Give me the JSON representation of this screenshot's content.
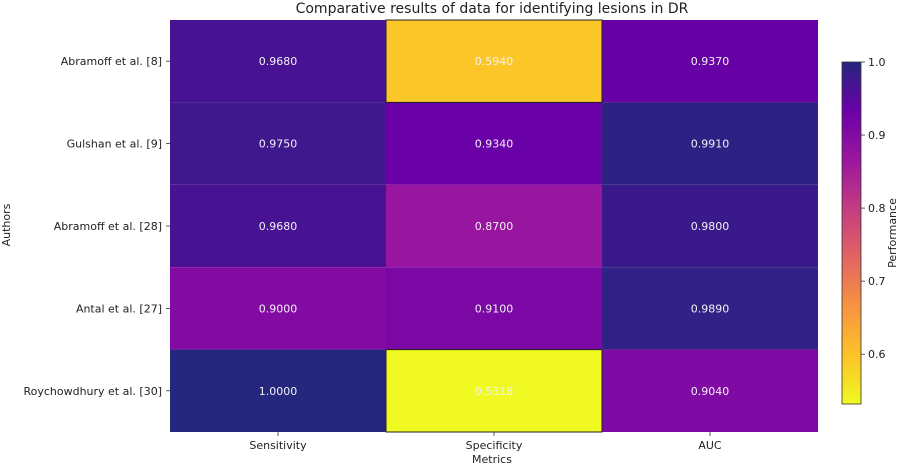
{
  "chart_data": {
    "type": "heatmap",
    "title": "Comparative results of data for identifying lesions in DR",
    "xlabel": "Metrics",
    "ylabel": "Authors",
    "x_categories": [
      "Sensitivity",
      "Specificity",
      "AUC"
    ],
    "y_categories": [
      "Abramoff et al. [8]",
      "Gulshan et al. [9]",
      "Abramoff et al. [28]",
      "Antal et al. [27]",
      "Roychowdhury et al. [30]"
    ],
    "values": [
      [
        0.968,
        0.594,
        0.937
      ],
      [
        0.975,
        0.934,
        0.991
      ],
      [
        0.968,
        0.87,
        0.98
      ],
      [
        0.9,
        0.91,
        0.989
      ],
      [
        1.0,
        0.5318,
        0.904
      ]
    ],
    "cell_labels": [
      [
        "0.9680",
        "0.5940",
        "0.9370"
      ],
      [
        "0.9750",
        "0.9340",
        "0.9910"
      ],
      [
        "0.9680",
        "0.8700",
        "0.9800"
      ],
      [
        "0.9000",
        "0.9100",
        "0.9890"
      ],
      [
        "1.0000",
        "0.5318",
        "0.9040"
      ]
    ],
    "colormap": "plasma_r",
    "vmin": 0.5318,
    "vmax": 1.0,
    "colorbar": {
      "label": "Performance",
      "ticks": [
        "0.6",
        "0.7",
        "0.8",
        "0.9",
        "1.0"
      ],
      "tick_values": [
        0.6,
        0.7,
        0.8,
        0.9,
        1.0
      ]
    },
    "grid": false
  }
}
